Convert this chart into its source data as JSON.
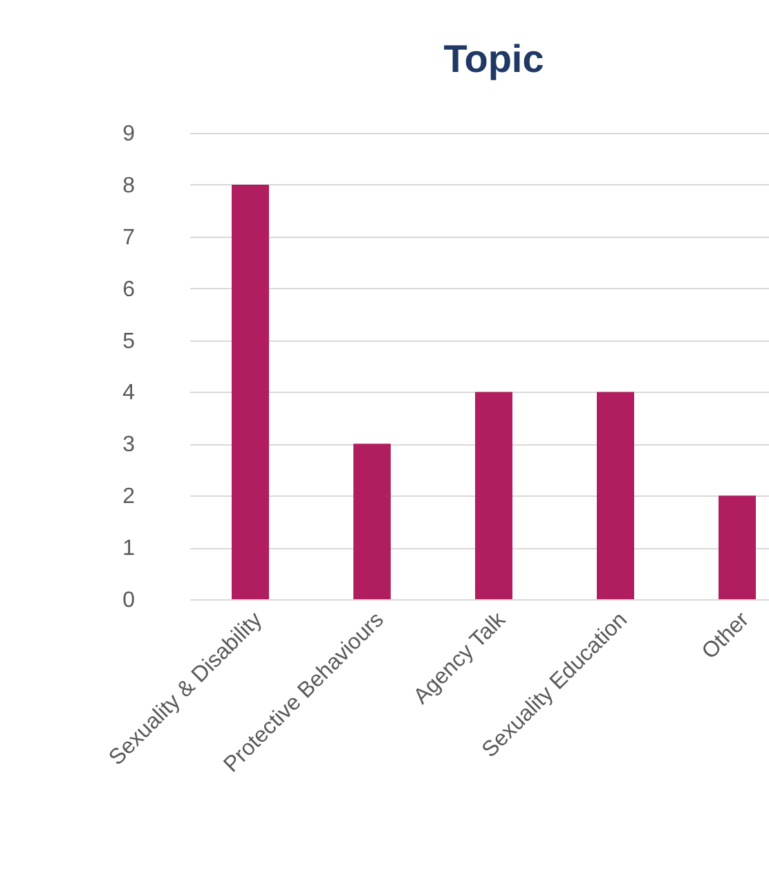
{
  "chart_data": {
    "type": "bar",
    "title": "Topic",
    "categories": [
      "Sexuality & Disability",
      "Protective Behaviours",
      "Agency Talk",
      "Sexuality Education",
      "Other"
    ],
    "values": [
      8,
      3,
      4,
      4,
      2
    ],
    "color": "#b01e5f",
    "ylim": [
      0,
      9
    ],
    "yticks": [
      0,
      1,
      2,
      3,
      4,
      5,
      6,
      7,
      8,
      9
    ],
    "grid": "y"
  }
}
